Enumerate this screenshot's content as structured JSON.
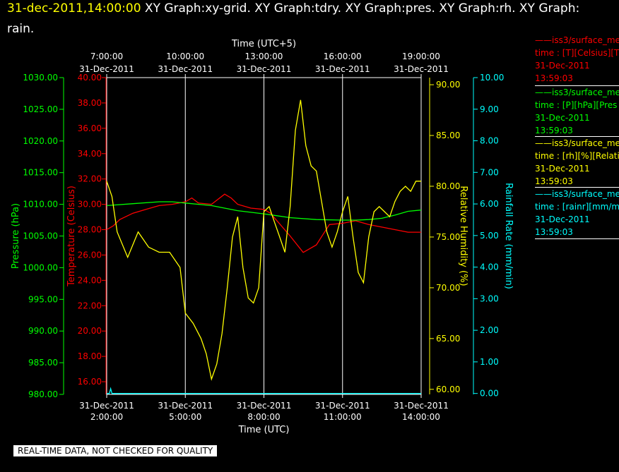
{
  "header": {
    "timestamp": "31-dec-2011,14:00:00",
    "graphs_line1": " XY Graph:xy-grid.  XY Graph:tdry.  XY Graph:pres.  XY Graph:rh.  XY Graph:",
    "graphs_line2": "rain."
  },
  "footer": {
    "quality_note": "REAL-TIME DATA, NOT CHECKED FOR QUALITY"
  },
  "legend": [
    {
      "name": "iss3/surface_me",
      "detail": "time : [T][Celsius][T",
      "date": "31-Dec-2011",
      "time": "13:59:03",
      "color": "#ff0000"
    },
    {
      "name": "iss3/surface_me",
      "detail": "time : [P][hPa][Pres",
      "date": "31-Dec-2011",
      "time": "13:59:03",
      "color": "#00ff00"
    },
    {
      "name": "iss3/surface_me",
      "detail": "time : [rh][%][Relati",
      "date": "31-Dec-2011",
      "time": "13:59:03",
      "color": "#ffff00"
    },
    {
      "name": "iss3/surface_me",
      "detail": "time : [rainr][mm/mi",
      "date": "31-Dec-2011",
      "time": "13:59:03",
      "color": "#00ffff"
    }
  ],
  "chart_data": {
    "type": "line",
    "x_bottom": {
      "label": "Time (UTC)",
      "range": [
        "2011-12-31 02:00",
        "2011-12-31 14:00"
      ],
      "ticks": [
        {
          "date": "31-Dec-2011",
          "time": "2:00:00"
        },
        {
          "date": "31-Dec-2011",
          "time": "5:00:00"
        },
        {
          "date": "31-Dec-2011",
          "time": "8:00:00"
        },
        {
          "date": "31-Dec-2011",
          "time": "11:00:00"
        },
        {
          "date": "31-Dec-2011",
          "time": "14:00:00"
        }
      ]
    },
    "x_top": {
      "label": "Time (UTC+5)",
      "ticks": [
        {
          "time": "7:00:00",
          "date": "31-Dec-2011"
        },
        {
          "time": "10:00:00",
          "date": "31-Dec-2011"
        },
        {
          "time": "13:00:00",
          "date": "31-Dec-2011"
        },
        {
          "time": "16:00:00",
          "date": "31-Dec-2011"
        },
        {
          "time": "19:00:00",
          "date": "31-Dec-2011"
        }
      ]
    },
    "axes": {
      "pressure": {
        "label": "Pressure (hPa)",
        "range": [
          980,
          1030
        ],
        "color": "#00ff00",
        "ticks": [
          "980.00",
          "985.00",
          "990.00",
          "995.00",
          "1000.00",
          "1005.00",
          "1010.00",
          "1015.00",
          "1020.00",
          "1025.00",
          "1030.00"
        ]
      },
      "temperature": {
        "label": "Temperature (Celsius)",
        "range": [
          15,
          40
        ],
        "color": "#ff0000",
        "ticks": [
          "16.00",
          "18.00",
          "20.00",
          "22.00",
          "24.00",
          "26.00",
          "28.00",
          "30.00",
          "32.00",
          "34.00",
          "36.00",
          "38.00",
          "40.00"
        ]
      },
      "rh": {
        "label": "Relative Humidity (%)",
        "range": [
          59.5,
          90.7
        ],
        "color": "#ffff00",
        "ticks": [
          "60.00",
          "65.00",
          "70.00",
          "75.00",
          "80.00",
          "85.00",
          "90.00"
        ]
      },
      "rain": {
        "label": "Rainfall Rate (mm/min)",
        "range": [
          -0.03,
          10
        ],
        "color": "#00ffff",
        "ticks": [
          "0.00",
          "1.00",
          "2.00",
          "3.00",
          "4.00",
          "5.00",
          "6.00",
          "7.00",
          "8.00",
          "9.00",
          "10.00"
        ]
      }
    },
    "grid": "vertical",
    "series": [
      {
        "axis": "temperature",
        "color": "#ff0000",
        "x": [
          2.0,
          2.25,
          2.5,
          3.0,
          3.5,
          4.0,
          4.5,
          5.0,
          5.25,
          5.5,
          6.0,
          6.5,
          6.75,
          7.0,
          7.5,
          8.0,
          8.25,
          8.5,
          9.0,
          9.5,
          10.0,
          10.25,
          10.5,
          11.0,
          11.5,
          12.0,
          12.5,
          13.0,
          13.5,
          14.0
        ],
        "y": [
          28.0,
          28.3,
          28.8,
          29.3,
          29.6,
          29.9,
          30.0,
          30.2,
          30.5,
          30.1,
          30.0,
          30.8,
          30.5,
          30.0,
          29.7,
          29.6,
          29.3,
          28.7,
          27.5,
          26.2,
          26.8,
          27.6,
          28.4,
          28.5,
          28.7,
          28.4,
          28.2,
          28.0,
          27.8,
          27.8
        ]
      },
      {
        "axis": "pressure",
        "color": "#00ff00",
        "x": [
          2.0,
          3.0,
          4.0,
          4.5,
          5.0,
          6.0,
          7.0,
          8.0,
          9.0,
          10.0,
          11.0,
          11.5,
          12.0,
          12.5,
          13.0,
          13.5,
          14.0
        ],
        "y": [
          1009.8,
          1010.1,
          1010.4,
          1010.4,
          1010.2,
          1009.8,
          1009.0,
          1008.5,
          1007.9,
          1007.6,
          1007.5,
          1007.5,
          1007.6,
          1007.8,
          1008.3,
          1008.9,
          1009.1
        ]
      },
      {
        "axis": "rh",
        "color": "#ffff00",
        "x": [
          2.0,
          2.2,
          2.4,
          2.8,
          3.2,
          3.6,
          4.0,
          4.4,
          4.8,
          5.0,
          5.3,
          5.6,
          5.8,
          6.0,
          6.2,
          6.4,
          6.6,
          6.8,
          7.0,
          7.2,
          7.4,
          7.6,
          7.8,
          8.0,
          8.2,
          8.4,
          8.6,
          8.8,
          9.0,
          9.2,
          9.4,
          9.6,
          9.8,
          10.0,
          10.2,
          10.4,
          10.6,
          10.8,
          11.0,
          11.2,
          11.4,
          11.6,
          11.8,
          12.0,
          12.2,
          12.4,
          12.6,
          12.8,
          13.0,
          13.2,
          13.4,
          13.6,
          13.8,
          14.0
        ],
        "y": [
          80.5,
          79.0,
          75.5,
          73.0,
          75.5,
          74.0,
          73.5,
          73.5,
          72.0,
          67.5,
          66.5,
          65.0,
          63.5,
          61.0,
          62.5,
          65.5,
          70.0,
          75.0,
          77.0,
          72.0,
          69.0,
          68.5,
          70.0,
          77.5,
          78.0,
          76.5,
          75.0,
          73.5,
          78.0,
          85.5,
          88.5,
          84.0,
          82.0,
          81.5,
          78.5,
          75.5,
          74.0,
          75.5,
          77.5,
          79.0,
          75.0,
          71.5,
          70.5,
          75.0,
          77.5,
          78.0,
          77.5,
          77.0,
          78.5,
          79.5,
          80.0,
          79.5,
          80.5,
          80.5
        ]
      },
      {
        "axis": "rain",
        "color": "#00ffff",
        "x": [
          2.0,
          2.1,
          2.15,
          2.2,
          14.0
        ],
        "y": [
          0.0,
          0.0,
          0.15,
          0.0,
          0.0
        ]
      }
    ]
  }
}
